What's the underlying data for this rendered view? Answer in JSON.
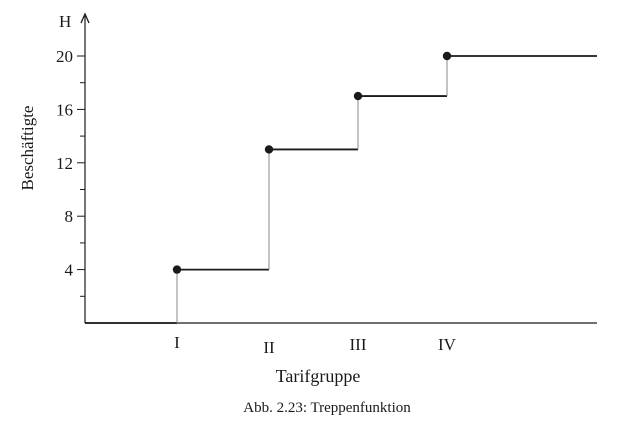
{
  "chart_data": {
    "type": "line",
    "subtype": "step",
    "title": "",
    "caption": "Abb. 2.23: Treppenfunktion",
    "xlabel": "Tarifgruppe",
    "ylabel": "Beschäftigte",
    "y_axis_symbol": "H",
    "categories": [
      "I",
      "II",
      "III",
      "IV"
    ],
    "x_tick_labels": [
      "I",
      "II",
      "III",
      "IV"
    ],
    "y_tick_labels": [
      "4",
      "8",
      "12",
      "16",
      "20"
    ],
    "y_minor_ticks": [
      2,
      6,
      10,
      14,
      18
    ],
    "values": [
      4,
      13,
      17,
      20
    ],
    "baseline": 0,
    "ylim": [
      0,
      20
    ],
    "grid": false,
    "legend": "none",
    "colors": {
      "line": "#1a1a1a",
      "riser": "#888888",
      "point": "#1a1a1a"
    }
  }
}
